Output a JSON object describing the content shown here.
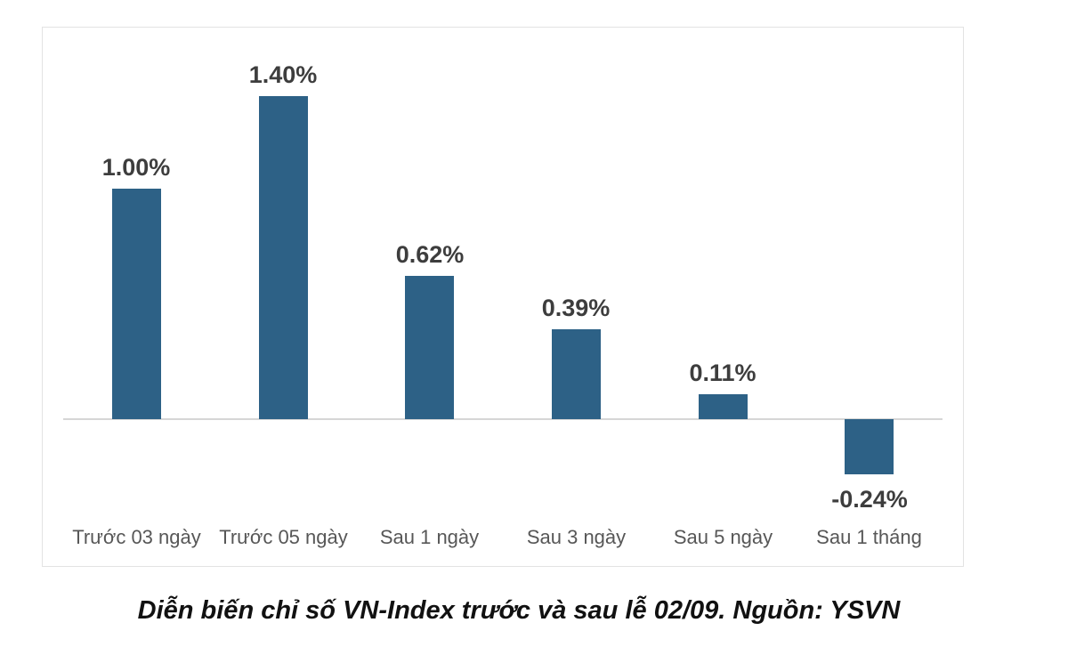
{
  "colors": {
    "bar": "#2d6186",
    "value_label": "#3d3d3d",
    "axis_label": "#575757",
    "baseline": "#d6d6d6",
    "chart_border": "#e3e3e3",
    "background": "#ffffff",
    "caption": "#111111"
  },
  "chart_data": {
    "type": "bar",
    "categories": [
      "Trước 03 ngày",
      "Trước 05 ngày",
      "Sau 1 ngày",
      "Sau 3 ngày",
      "Sau 5 ngày",
      "Sau 1 tháng"
    ],
    "values": [
      1.0,
      1.4,
      0.62,
      0.39,
      0.11,
      -0.24
    ],
    "data_labels": [
      "1.00%",
      "1.40%",
      "0.62%",
      "0.39%",
      "0.11%",
      "-0.24%"
    ],
    "title": "",
    "xlabel": "",
    "ylabel": "",
    "ylim": [
      -0.5,
      1.55
    ],
    "unit": "percent",
    "grid": false,
    "legend": false,
    "baseline_value": 0
  },
  "caption": "Diễn biến chỉ số VN-Index trước và sau lễ 02/09. Nguồn: YSVN"
}
